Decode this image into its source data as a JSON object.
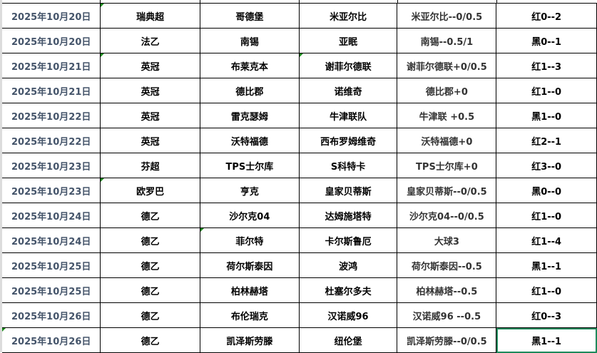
{
  "accent_color": "#1e8a5c",
  "rows": [
    {
      "date": "2025年10月20日",
      "league": "瑞典超",
      "home": "哥德堡",
      "away": "米亚尔比",
      "handicap": "米亚尔比--0/0.5",
      "result": "红0--2"
    },
    {
      "date": "2025年10月20日",
      "league": "法乙",
      "home": "南锡",
      "away": "亚眠",
      "handicap": "南锡--0.5/1",
      "result": "黑0--1"
    },
    {
      "date": "2025年10月21日",
      "league": "英冠",
      "home": "布莱克本",
      "away": "谢菲尔德联",
      "handicap": "谢菲尔德联+0/0.5",
      "result": "红1--3"
    },
    {
      "date": "2025年10月21日",
      "league": "英冠",
      "home": "德比郡",
      "away": "诺维奇",
      "handicap": "德比郡+0",
      "result": "红1--0"
    },
    {
      "date": "2025年10月22日",
      "league": "英冠",
      "home": "雷克瑟姆",
      "away": "牛津联队",
      "handicap": "牛津联  +0.5",
      "result": "黑1--0"
    },
    {
      "date": "2025年10月22日",
      "league": "英冠",
      "home": "沃特福德",
      "away": "西布罗姆维奇",
      "handicap": "沃特福德+0",
      "result": "红2--1"
    },
    {
      "date": "2025年10月23日",
      "league": "芬超",
      "home": "TPS士尔库",
      "away": "S科特卡",
      "handicap": "TPS士尔库+0",
      "result": "红3--0"
    },
    {
      "date": "2025年10月23日",
      "league": "欧罗巴",
      "home": "亨克",
      "away": "皇家贝蒂斯",
      "handicap": "皇家贝蒂斯--0/0.5",
      "result": "黑0--0"
    },
    {
      "date": "2025年10月24日",
      "league": "德乙",
      "home": "沙尔克04",
      "away": "达姆施塔特",
      "handicap": "沙尔克04--0/0.5",
      "result": "红1--0"
    },
    {
      "date": "2025年10月24日",
      "league": "德乙",
      "home": "菲尔特",
      "away": "卡尔斯鲁厄",
      "handicap": "大球3",
      "result": "红1--4"
    },
    {
      "date": "2025年10月25日",
      "league": "德乙",
      "home": "荷尔斯泰因",
      "away": "波鸿",
      "handicap": "荷尔斯泰因--0.5",
      "result": "黑1--1"
    },
    {
      "date": "2025年10月25日",
      "league": "德乙",
      "home": "柏林赫塔",
      "away": "杜塞尔多夫",
      "handicap": "柏林赫塔--0.5",
      "result": "红1--0"
    },
    {
      "date": "2025年10月26日",
      "league": "德乙",
      "home": "布伦瑞克",
      "away": "汉诺威96",
      "handicap": "汉诺威96 --0.5",
      "result": "红0--3"
    },
    {
      "date": "2025年10月26日",
      "league": "德乙",
      "home": "凯泽斯劳滕",
      "away": "纽伦堡",
      "handicap": "凯泽斯劳滕--0/0.5",
      "result": "黑1--1"
    }
  ]
}
